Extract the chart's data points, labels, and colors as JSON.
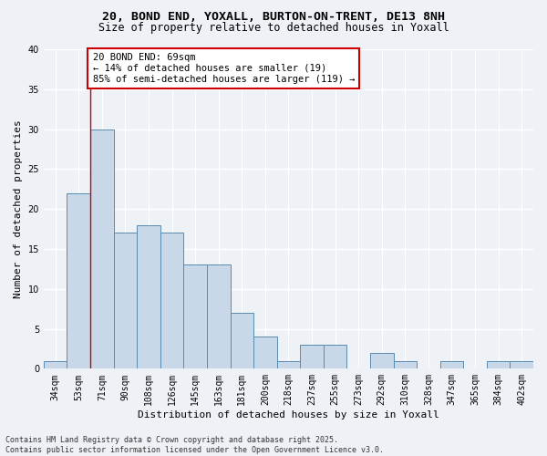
{
  "title_line1": "20, BOND END, YOXALL, BURTON-ON-TRENT, DE13 8NH",
  "title_line2": "Size of property relative to detached houses in Yoxall",
  "xlabel": "Distribution of detached houses by size in Yoxall",
  "ylabel": "Number of detached properties",
  "categories": [
    "34sqm",
    "53sqm",
    "71sqm",
    "90sqm",
    "108sqm",
    "126sqm",
    "145sqm",
    "163sqm",
    "181sqm",
    "200sqm",
    "218sqm",
    "237sqm",
    "255sqm",
    "273sqm",
    "292sqm",
    "310sqm",
    "328sqm",
    "347sqm",
    "365sqm",
    "384sqm",
    "402sqm"
  ],
  "values": [
    1,
    22,
    30,
    17,
    18,
    17,
    13,
    13,
    7,
    4,
    1,
    3,
    3,
    0,
    2,
    1,
    0,
    1,
    0,
    1,
    1
  ],
  "bar_color": "#c8d8e8",
  "bar_edge_color": "#5a8ab0",
  "annotation_text": "20 BOND END: 69sqm\n← 14% of detached houses are smaller (19)\n85% of semi-detached houses are larger (119) →",
  "annotation_box_color": "#ffffff",
  "annotation_box_edge_color": "#cc0000",
  "highlight_line_color": "#cc0000",
  "ylim": [
    0,
    40
  ],
  "yticks": [
    0,
    5,
    10,
    15,
    20,
    25,
    30,
    35,
    40
  ],
  "background_color": "#eef2f7",
  "grid_color": "#ffffff",
  "footer_text": "Contains HM Land Registry data © Crown copyright and database right 2025.\nContains public sector information licensed under the Open Government Licence v3.0.",
  "title_fontsize": 9.5,
  "subtitle_fontsize": 8.5,
  "axis_label_fontsize": 8,
  "tick_fontsize": 7,
  "annotation_fontsize": 7.5,
  "footer_fontsize": 6
}
